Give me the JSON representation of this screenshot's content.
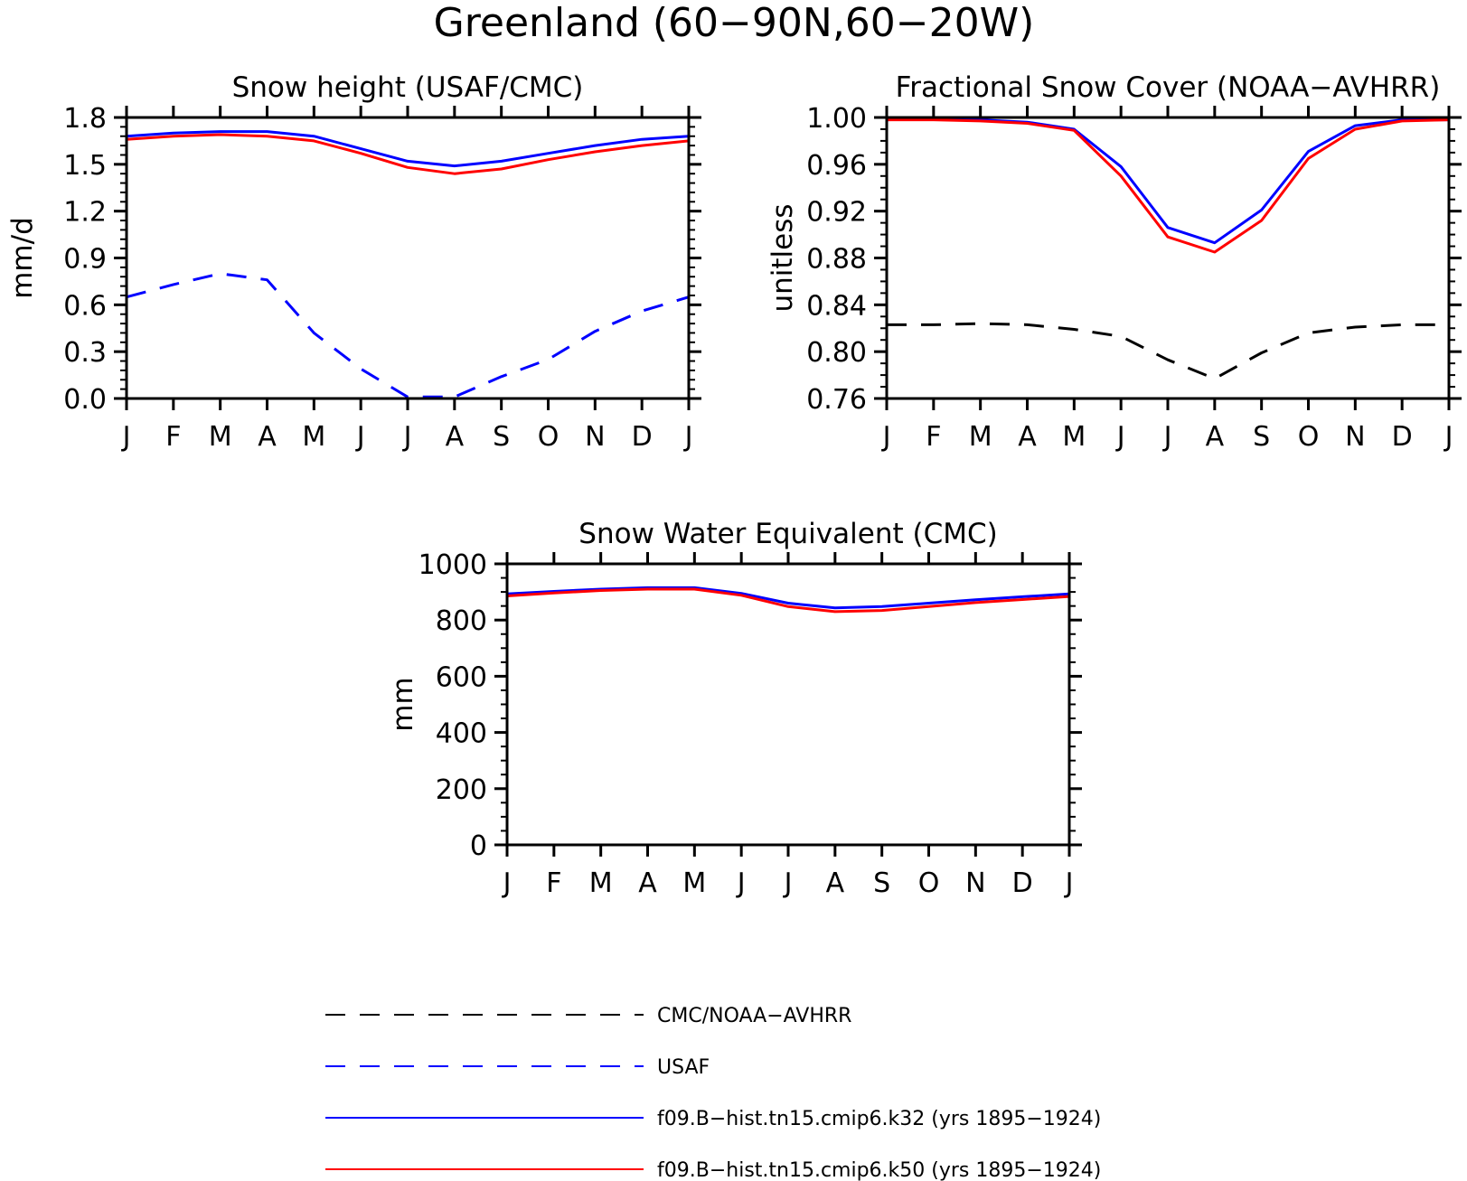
{
  "main_title": "Greenland (60−90N,60−20W)",
  "colors": {
    "black": "#000000",
    "blue": "#0000ff",
    "red": "#ff0000"
  },
  "chart_data": [
    {
      "type": "line",
      "title": "Snow height (USAF/CMC)",
      "ylabel": "mm/d",
      "xlabel": "",
      "categories": [
        "J",
        "F",
        "M",
        "A",
        "M",
        "J",
        "J",
        "A",
        "S",
        "O",
        "N",
        "D",
        "J"
      ],
      "ylim": [
        0,
        1.8
      ],
      "yticks": [
        "0.0",
        "0.3",
        "0.6",
        "0.9",
        "1.2",
        "1.5",
        "1.8"
      ],
      "series": [
        {
          "name": "CMC/NOAA−AVHRR",
          "color": "#000000",
          "dash": true,
          "values": [
            0,
            0,
            0,
            0,
            0,
            0,
            0,
            0,
            0,
            0,
            0,
            0,
            0
          ]
        },
        {
          "name": "USAF",
          "color": "#0000ff",
          "dash": true,
          "values": [
            0.65,
            0.73,
            0.8,
            0.76,
            0.42,
            0.19,
            0.01,
            0.01,
            0.14,
            0.25,
            0.43,
            0.56,
            0.65
          ]
        },
        {
          "name": "f09.B−hist.tn15.cmip6.k32 (yrs 1895−1924)",
          "color": "#0000ff",
          "dash": false,
          "values": [
            1.68,
            1.7,
            1.71,
            1.71,
            1.68,
            1.6,
            1.52,
            1.49,
            1.52,
            1.57,
            1.62,
            1.66,
            1.68
          ]
        },
        {
          "name": "f09.B−hist.tn15.cmip6.k50 (yrs 1895−1924)",
          "color": "#ff0000",
          "dash": false,
          "values": [
            1.66,
            1.68,
            1.69,
            1.68,
            1.65,
            1.57,
            1.48,
            1.44,
            1.47,
            1.53,
            1.58,
            1.62,
            1.65
          ]
        }
      ]
    },
    {
      "type": "line",
      "title": "Fractional Snow Cover (NOAA−AVHRR)",
      "ylabel": "unitless",
      "xlabel": "",
      "categories": [
        "J",
        "F",
        "M",
        "A",
        "M",
        "J",
        "J",
        "A",
        "S",
        "O",
        "N",
        "D",
        "J"
      ],
      "ylim": [
        0.76,
        1.0
      ],
      "yticks": [
        "0.76",
        "0.80",
        "0.84",
        "0.88",
        "0.92",
        "0.96",
        "1.00"
      ],
      "series": [
        {
          "name": "CMC/NOAA−AVHRR",
          "color": "#000000",
          "dash": true,
          "values": [
            0.823,
            0.823,
            0.824,
            0.823,
            0.819,
            0.813,
            0.793,
            0.777,
            0.799,
            0.816,
            0.821,
            0.823,
            0.823
          ]
        },
        {
          "name": "f09.B−hist.tn15.cmip6.k32 (yrs 1895−1924)",
          "color": "#0000ff",
          "dash": false,
          "values": [
            0.998,
            0.999,
            0.998,
            0.996,
            0.99,
            0.958,
            0.906,
            0.893,
            0.921,
            0.971,
            0.993,
            0.998,
            0.998
          ]
        },
        {
          "name": "f09.B−hist.tn15.cmip6.k50 (yrs 1895−1924)",
          "color": "#ff0000",
          "dash": false,
          "values": [
            0.998,
            0.998,
            0.997,
            0.995,
            0.989,
            0.95,
            0.898,
            0.885,
            0.912,
            0.965,
            0.99,
            0.997,
            0.998
          ]
        }
      ]
    },
    {
      "type": "line",
      "title": "Snow Water Equivalent (CMC)",
      "ylabel": "mm",
      "xlabel": "",
      "categories": [
        "J",
        "F",
        "M",
        "A",
        "M",
        "J",
        "J",
        "A",
        "S",
        "O",
        "N",
        "D",
        "J"
      ],
      "ylim": [
        0,
        1000
      ],
      "yticks": [
        "0",
        "200",
        "400",
        "600",
        "800",
        "1000"
      ],
      "series": [
        {
          "name": "CMC/NOAA−AVHRR",
          "color": "#000000",
          "dash": true,
          "values": [
            0,
            0,
            0,
            0,
            0,
            0,
            0,
            0,
            0,
            0,
            0,
            0,
            0
          ]
        },
        {
          "name": "f09.B−hist.tn15.cmip6.k32 (yrs 1895−1924)",
          "color": "#0000ff",
          "dash": false,
          "values": [
            893,
            902,
            910,
            915,
            915,
            895,
            860,
            843,
            848,
            860,
            872,
            883,
            893
          ]
        },
        {
          "name": "f09.B−hist.tn15.cmip6.k50 (yrs 1895−1924)",
          "color": "#ff0000",
          "dash": false,
          "values": [
            886,
            896,
            905,
            910,
            910,
            888,
            848,
            830,
            834,
            848,
            862,
            873,
            884
          ]
        }
      ]
    }
  ],
  "legend": {
    "placement": "bottom",
    "items": [
      {
        "label": "CMC/NOAA−AVHRR",
        "color": "#000000",
        "dash": "long"
      },
      {
        "label": "USAF",
        "color": "#0000ff",
        "dash": "long"
      },
      {
        "label": "f09.B−hist.tn15.cmip6.k32 (yrs 1895−1924)",
        "color": "#0000ff",
        "dash": "solid"
      },
      {
        "label": "f09.B−hist.tn15.cmip6.k50 (yrs 1895−1924)",
        "color": "#ff0000",
        "dash": "solid"
      }
    ]
  }
}
